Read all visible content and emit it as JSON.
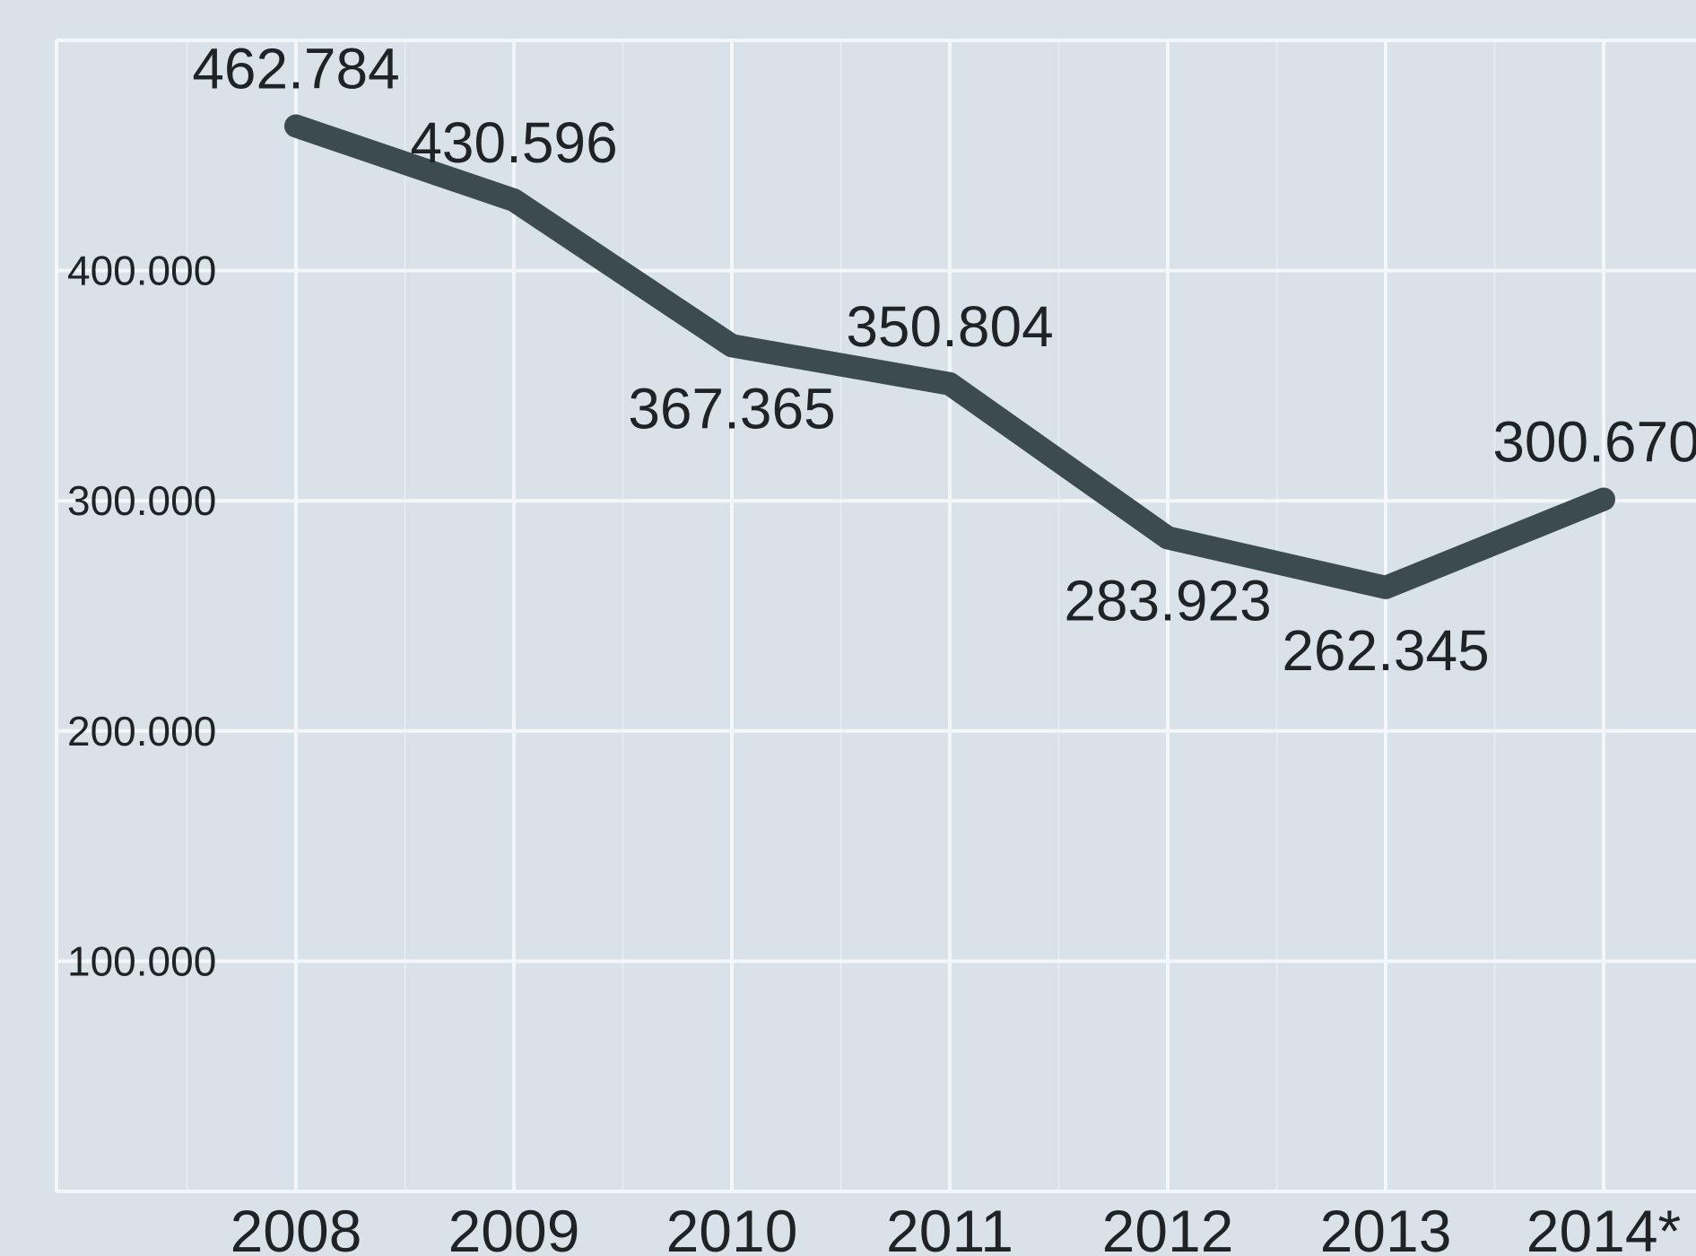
{
  "chart_data": {
    "type": "line",
    "title": "",
    "xlabel": "",
    "ylabel": "",
    "categories": [
      "2008",
      "2009",
      "2010",
      "2011",
      "2012",
      "2013",
      "2014*"
    ],
    "series": [
      {
        "values": [
          462784,
          430596,
          367365,
          350804,
          283923,
          262345,
          300670
        ],
        "data_labels": [
          "462.784",
          "430.596",
          "367.365",
          "350.804",
          "283.923",
          "262.345",
          "300.670"
        ]
      }
    ],
    "yticks": [
      100000,
      200000,
      300000,
      400000
    ],
    "ytick_labels": [
      "100.000",
      "200.000",
      "300.000",
      "400.000"
    ],
    "ylim": [
      0,
      500000
    ],
    "grid": true,
    "legend": "none",
    "colors": {
      "background": "#d9e2e9",
      "grid": "#f4f7f9",
      "line": "#3b4b4f",
      "text": "#1f2326"
    }
  }
}
